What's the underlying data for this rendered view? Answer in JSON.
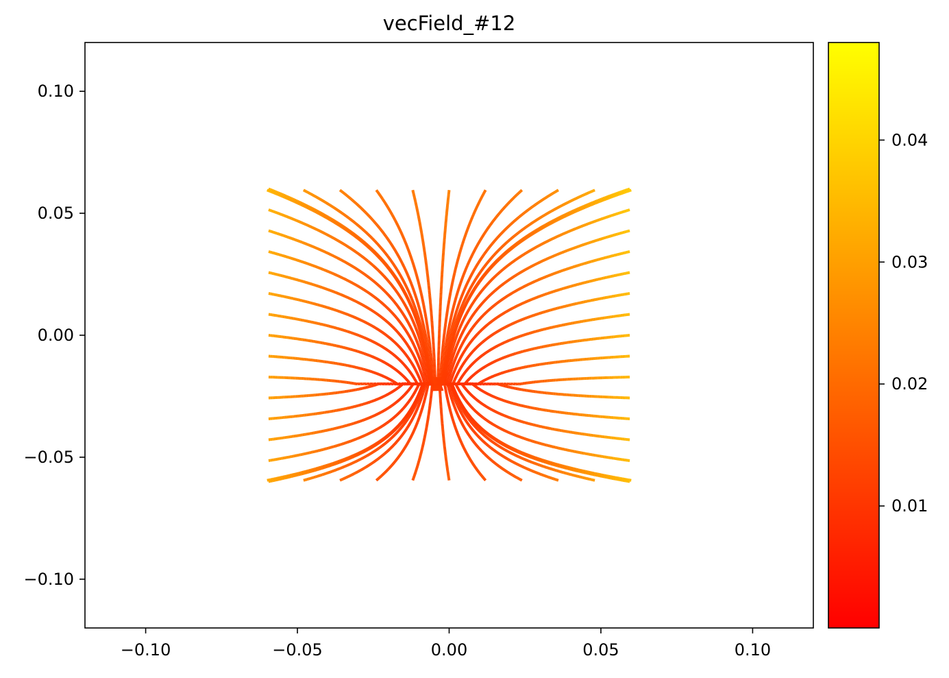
{
  "chart_data": {
    "type": "streamplot",
    "title": "vecField_#12",
    "xlabel": "",
    "ylabel": "",
    "xlim": [
      -0.12,
      0.12
    ],
    "ylim": [
      -0.12,
      0.12
    ],
    "xticks": [
      -0.1,
      -0.05,
      0.0,
      0.05,
      0.1
    ],
    "xtick_labels": [
      "−0.10",
      "−0.05",
      "0.00",
      "0.05",
      "0.10"
    ],
    "yticks": [
      -0.1,
      -0.05,
      0.0,
      0.05,
      0.1
    ],
    "ytick_labels": [
      "−0.10",
      "−0.05",
      "0.00",
      "0.05",
      "0.10"
    ],
    "domain": {
      "x": [
        -0.06,
        0.06
      ],
      "y": [
        -0.06,
        0.06
      ]
    },
    "field": {
      "description_of_flow": "source near (-0.004, -0.02); flow diverges outward, vertical split near x=-0.004",
      "source": [
        -0.004,
        -0.02
      ],
      "u_expr": "x - x0",
      "v_expr": "(y - y0) * 0.3 (sign flips across y0)",
      "magnitude_range": [
        0.0,
        0.048
      ]
    },
    "colorbar": {
      "colormap": "autumn",
      "vmin": 0.0,
      "vmax": 0.048,
      "colors": [
        "#ff0000",
        "#ffff00"
      ],
      "ticks": [
        0.01,
        0.02,
        0.03,
        0.04
      ],
      "tick_labels": [
        "0.01",
        "0.02",
        "0.03",
        "0.04"
      ]
    },
    "grid": false
  }
}
